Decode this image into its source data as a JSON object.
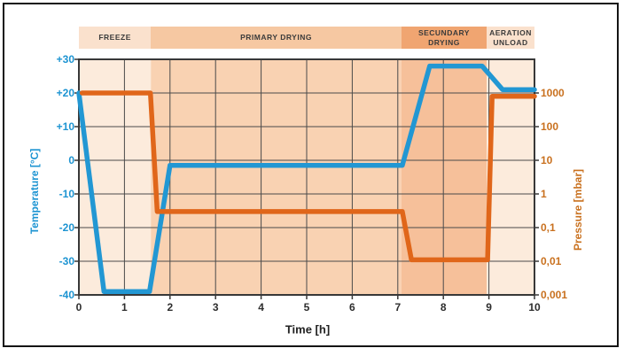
{
  "window": {
    "background": "#ffffff",
    "frame_color": "#141414"
  },
  "chart_data": {
    "type": "line",
    "title": "",
    "xlabel": "Time [h]",
    "xlim": [
      0,
      10
    ],
    "x_ticks": [
      "0",
      "1",
      "2",
      "3",
      "4",
      "5",
      "6",
      "7",
      "8",
      "9",
      "10"
    ],
    "x_tick_values": [
      0,
      1,
      2,
      3,
      4,
      5,
      6,
      7,
      8,
      9,
      10
    ],
    "x_tick_color": "#2d2d2d",
    "grid": true,
    "grid_color": "#4a4a4a",
    "plot_border_color": "#383838",
    "left_axis": {
      "label": "Temperature [°C]",
      "color": "#1d94d2",
      "ticks": [
        "+30",
        "+20",
        "+10",
        "0",
        "-10",
        "-20",
        "-30",
        "-40"
      ],
      "values": [
        30,
        20,
        10,
        0,
        -10,
        -20,
        -30,
        -40
      ],
      "lim": [
        -40,
        30
      ]
    },
    "right_axis": {
      "label": "Pressure [mbar]",
      "color": "#c9711f",
      "scale": "log",
      "ticks": [
        "1000",
        "100",
        "10",
        "1",
        "0,1",
        "0,01",
        "0,001"
      ],
      "values": [
        1000,
        100,
        10,
        1,
        0.1,
        0.01,
        0.001
      ],
      "lim": [
        0.001,
        1000
      ]
    },
    "phases": [
      {
        "label": "FREEZE",
        "t0": 0,
        "t1": 1.58,
        "header_color": "#fae1cd",
        "plot_color": "#fcebdc"
      },
      {
        "label": "PRIMARY DRYING",
        "t0": 1.58,
        "t1": 7.08,
        "header_color": "#f6c8a2",
        "plot_color": "#f9d2b2"
      },
      {
        "label": "SECUNDARY\nDRYING",
        "t0": 7.08,
        "t1": 8.95,
        "header_color": "#f0a571",
        "plot_color": "#f6c09a"
      },
      {
        "label": "AERATION\nUNLOAD",
        "t0": 8.95,
        "t1": 10,
        "header_color": "#fae1cd",
        "plot_color": "#fcebdc"
      }
    ],
    "series": [
      {
        "name": "Temperature",
        "axis": "temp",
        "unit": "°C",
        "color": "#2297d3",
        "points": [
          [
            0,
            20
          ],
          [
            0.55,
            -39
          ],
          [
            1.55,
            -39
          ],
          [
            2,
            -1.5
          ],
          [
            7.1,
            -1.5
          ],
          [
            7.7,
            28
          ],
          [
            8.85,
            28
          ],
          [
            9.3,
            21
          ],
          [
            10,
            21
          ]
        ]
      },
      {
        "name": "Pressure",
        "axis": "pressure",
        "unit": "mbar",
        "color": "#e0661a",
        "points": [
          [
            0.07,
            1000
          ],
          [
            1.57,
            1000
          ],
          [
            1.72,
            0.3
          ],
          [
            7.1,
            0.3
          ],
          [
            7.3,
            0.011
          ],
          [
            8.97,
            0.011
          ],
          [
            9.07,
            800
          ],
          [
            10,
            800
          ]
        ]
      }
    ]
  }
}
